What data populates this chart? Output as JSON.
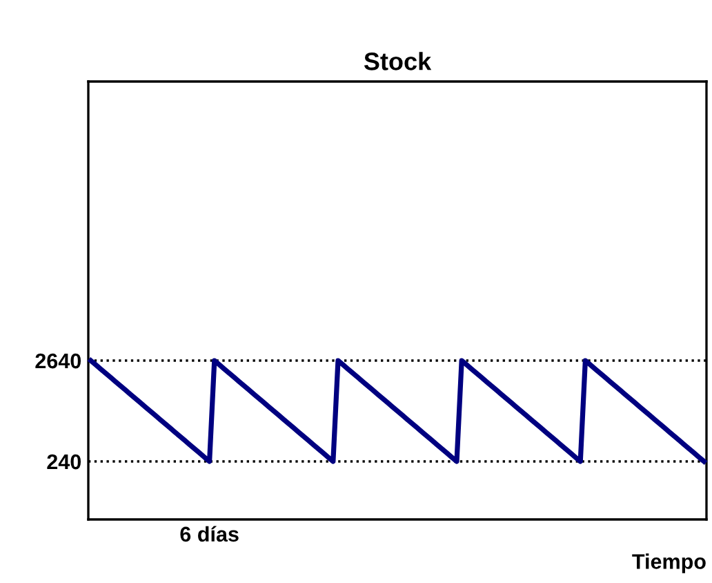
{
  "chart_data": {
    "type": "line",
    "title": "Stock",
    "xlabel": "Tiempo",
    "categories": [
      null,
      null,
      null,
      null,
      null,
      null,
      null,
      null,
      null,
      null,
      null,
      null,
      null,
      null,
      null,
      null,
      null,
      null,
      null,
      null,
      null,
      null,
      null,
      null,
      "6 días",
      null,
      null,
      null,
      null,
      null,
      null,
      null,
      null,
      null,
      null,
      null,
      null,
      null,
      null,
      null,
      null,
      null,
      null,
      null,
      null,
      null,
      null,
      null,
      null,
      null,
      null,
      null,
      null,
      null,
      null,
      null,
      null,
      null,
      null,
      null,
      null,
      null,
      null,
      null,
      null,
      null,
      null,
      null,
      null,
      null,
      null,
      null,
      null,
      null,
      null,
      null,
      null,
      null,
      null,
      null,
      null,
      null,
      null,
      null,
      null,
      null,
      null,
      null,
      null,
      null,
      null,
      null,
      null,
      null,
      null,
      null,
      null,
      null,
      null,
      null,
      null,
      null,
      null,
      null,
      null,
      null,
      null,
      null,
      null,
      null,
      null,
      null,
      null,
      null,
      null,
      null,
      null,
      null,
      null,
      null,
      null,
      null,
      null,
      null,
      null
    ],
    "series": [
      {
        "color": "#000080",
        "values": [
          2640,
          2540,
          2440,
          2340,
          2240,
          2140,
          2040,
          1940,
          1840,
          1740,
          1640,
          1540,
          1440,
          1340,
          1240,
          1140,
          1040,
          940,
          840,
          740,
          640,
          540,
          440,
          340,
          240,
          2640,
          2540,
          2440,
          2340,
          2240,
          2140,
          2040,
          1940,
          1840,
          1740,
          1640,
          1540,
          1440,
          1340,
          1240,
          1140,
          1040,
          940,
          840,
          740,
          640,
          540,
          440,
          340,
          240,
          2640,
          2540,
          2440,
          2340,
          2240,
          2140,
          2040,
          1940,
          1840,
          1740,
          1640,
          1540,
          1440,
          1340,
          1240,
          1140,
          1040,
          940,
          840,
          740,
          640,
          540,
          440,
          340,
          240,
          2640,
          2540,
          2440,
          2340,
          2240,
          2140,
          2040,
          1940,
          1840,
          1740,
          1640,
          1540,
          1440,
          1340,
          1240,
          1140,
          1040,
          940,
          840,
          740,
          640,
          540,
          440,
          340,
          240,
          2640,
          2540,
          2440,
          2340,
          2240,
          2140,
          2040,
          1940,
          1840,
          1740,
          1640,
          1540,
          1440,
          1340,
          1240,
          1140,
          1040,
          940,
          840,
          740,
          640,
          540,
          440,
          340,
          240
        ]
      }
    ],
    "ylim": [
      -1140,
      9280
    ],
    "yticks": [
      {
        "value": 240,
        "label": "240"
      },
      {
        "value": 2640,
        "label": "2640"
      }
    ],
    "grid": "y",
    "line_style": "solid",
    "marker": "none"
  }
}
